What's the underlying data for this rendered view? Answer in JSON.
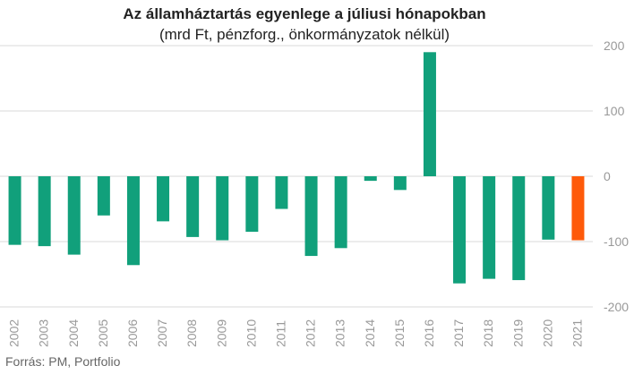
{
  "chart_data": {
    "type": "bar",
    "title": "Az államháztartás egyenlege a júliusi hónapokban",
    "subtitle": "(mrd Ft, pénzforg., önkormányzatok nélkül)",
    "source": "Forrás: PM, Portfolio",
    "categories": [
      "2002",
      "2003",
      "2004",
      "2005",
      "2006",
      "2007",
      "2008",
      "2009",
      "2010",
      "2011",
      "2012",
      "2013",
      "2014",
      "2015",
      "2016",
      "2017",
      "2018",
      "2019",
      "2020",
      "2021"
    ],
    "values": [
      -105,
      -107,
      -120,
      -60,
      -136,
      -69,
      -93,
      -98,
      -85,
      -50,
      -122,
      -110,
      -7,
      -21,
      190,
      -164,
      -157,
      -159,
      -97,
      -98
    ],
    "ylim": [
      -200,
      200
    ],
    "yticks": [
      200,
      100,
      0,
      -100,
      -200
    ],
    "ytick_labels": [
      "200",
      "100",
      "0",
      "-100",
      "-200"
    ],
    "colors": {
      "default": "#11a07b",
      "highlight": "#fe5a0a",
      "grid": "#d9d9d9",
      "tick_text": "#999999"
    },
    "highlight_category": "2021",
    "grid": true,
    "yaxis_position": "right"
  }
}
